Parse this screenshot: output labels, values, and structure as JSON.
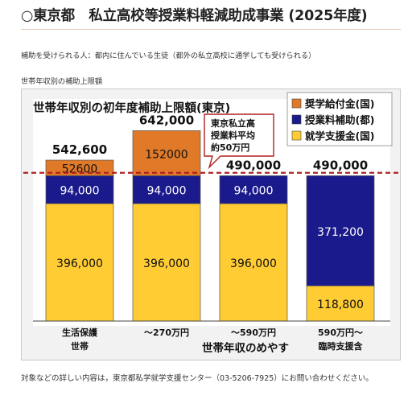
{
  "page": {
    "heading": "○東京都　私立高校等授業料軽減助成事業 (2025年度)",
    "intro": "補助を受けられる人：都内に住んでいる生徒（都外の私立高校に通学しても受けられる）",
    "chart_caption": "世帯年収別の補助上限額",
    "footnote": "対象などの詳しい内容は，東京都私学就学支援センター（03-5206-7925）にお問い合わせください。"
  },
  "chart_data": {
    "type": "bar",
    "stacked": true,
    "title": "世帯年収別の初年度補助上限額(東京)",
    "xlabel": "世帯年収のめやす",
    "ylabel": "",
    "ylim": [
      0,
      700000
    ],
    "grid": false,
    "legend_position": "top-right",
    "categories": [
      [
        "生活保護",
        "世帯"
      ],
      [
        "～270万円"
      ],
      [
        "～590万円"
      ],
      [
        "590万円～",
        "臨時支援含"
      ]
    ],
    "series": [
      {
        "name": "就学支援金(国)",
        "color": "#ffcc33",
        "values": [
          396000,
          396000,
          396000,
          118800
        ],
        "labels": [
          "396,000",
          "396,000",
          "396,000",
          "118,800"
        ]
      },
      {
        "name": "授業料補助(都)",
        "color": "#1a1a8c",
        "values": [
          94000,
          94000,
          94000,
          371200
        ],
        "labels": [
          "94,000",
          "94,000",
          "94,000",
          "371,200"
        ]
      },
      {
        "name": "奨学給付金(国)",
        "color": "#e07a28",
        "values": [
          52600,
          152000,
          0,
          0
        ],
        "labels": [
          "52600",
          "152000",
          "",
          ""
        ]
      }
    ],
    "legend_order": [
      "奨学給付金(国)",
      "授業料補助(都)",
      "就学支援金(国)"
    ],
    "totals": [
      "542,600",
      "642,000",
      "490,000",
      "490,000"
    ],
    "reference_line": {
      "value": 500000,
      "color": "#b02020"
    },
    "annotation": {
      "lines": [
        "東京私立高",
        "授業料平均",
        "約50万円"
      ]
    }
  }
}
